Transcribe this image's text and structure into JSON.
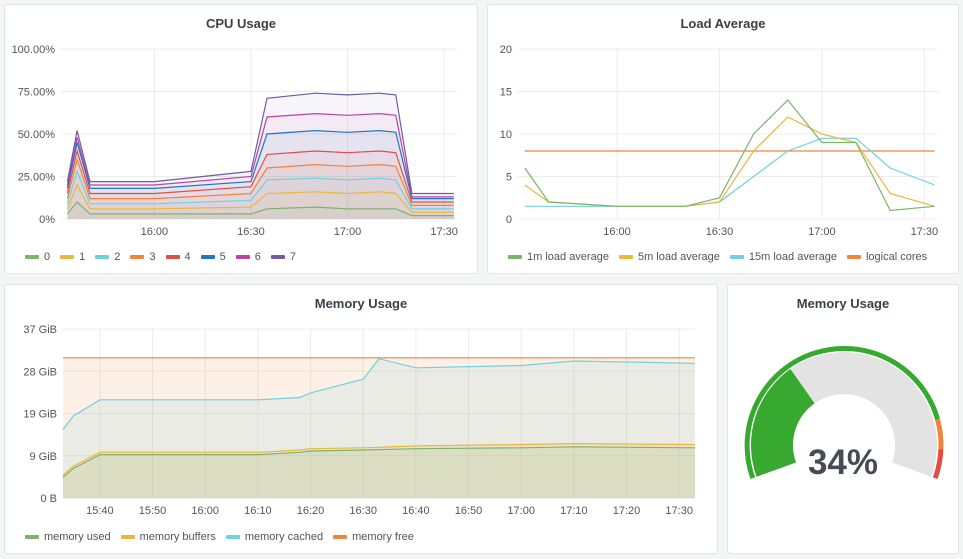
{
  "panels": {
    "cpu": {
      "title": "CPU Usage",
      "yticks": [
        "100.00%",
        "75.00%",
        "50.00%",
        "25.00%",
        "0%"
      ],
      "xticks": [
        "16:00",
        "16:30",
        "17:00",
        "17:30"
      ],
      "legend": [
        {
          "label": "0",
          "color": "#7eb26d"
        },
        {
          "label": "1",
          "color": "#eab839"
        },
        {
          "label": "2",
          "color": "#6ed0e0"
        },
        {
          "label": "3",
          "color": "#ef843c"
        },
        {
          "label": "4",
          "color": "#e24d42"
        },
        {
          "label": "5",
          "color": "#1f78c1"
        },
        {
          "label": "6",
          "color": "#ba43a9"
        },
        {
          "label": "7",
          "color": "#705da0"
        }
      ]
    },
    "load": {
      "title": "Load Average",
      "yticks": [
        "20",
        "15",
        "10",
        "5",
        "0"
      ],
      "xticks": [
        "16:00",
        "16:30",
        "17:00",
        "17:30"
      ],
      "legend": [
        {
          "label": "1m load average",
          "color": "#7eb26d"
        },
        {
          "label": "5m load average",
          "color": "#eab839"
        },
        {
          "label": "15m load average",
          "color": "#6ed0e0"
        },
        {
          "label": "logical cores",
          "color": "#ef843c"
        }
      ]
    },
    "memory": {
      "title": "Memory Usage",
      "yticks": [
        "37 GiB",
        "28 GiB",
        "19 GiB",
        "9 GiB",
        "0 B"
      ],
      "xticks": [
        "15:40",
        "15:50",
        "16:00",
        "16:10",
        "16:20",
        "16:30",
        "16:40",
        "16:50",
        "17:00",
        "17:10",
        "17:20",
        "17:30"
      ],
      "legend": [
        {
          "label": "memory used",
          "color": "#7eb26d"
        },
        {
          "label": "memory buffers",
          "color": "#eab839"
        },
        {
          "label": "memory cached",
          "color": "#6ed0e0"
        },
        {
          "label": "memory free",
          "color": "#ef843c"
        }
      ]
    },
    "gauge": {
      "title": "Memory Usage",
      "value_text": "34%",
      "value": 0.34,
      "colors": {
        "ok": "#37a931",
        "warn": "#ef843c",
        "crit": "#e24d42",
        "track": "#e3e3e3"
      }
    }
  },
  "chart_data": [
    {
      "type": "line",
      "title": "CPU Usage",
      "ylim": [
        0,
        100
      ],
      "x": [
        "15:33",
        "15:36",
        "15:40",
        "16:00",
        "16:30",
        "16:35",
        "16:50",
        "17:00",
        "17:10",
        "17:15",
        "17:20",
        "17:33"
      ],
      "series": [
        {
          "name": "0",
          "values": [
            3,
            10,
            3,
            3,
            3,
            6,
            7,
            6,
            6,
            6,
            2,
            2
          ]
        },
        {
          "name": "1",
          "values": [
            6,
            20,
            6,
            6,
            7,
            15,
            16,
            15,
            16,
            15,
            4,
            4
          ]
        },
        {
          "name": "2",
          "values": [
            9,
            28,
            9,
            9,
            11,
            23,
            24,
            23,
            24,
            23,
            6,
            6
          ]
        },
        {
          "name": "3",
          "values": [
            12,
            35,
            12,
            12,
            15,
            30,
            32,
            31,
            32,
            31,
            8,
            8
          ]
        },
        {
          "name": "4",
          "values": [
            15,
            40,
            15,
            15,
            19,
            38,
            40,
            39,
            40,
            39,
            10,
            10
          ]
        },
        {
          "name": "5",
          "values": [
            18,
            45,
            18,
            18,
            22,
            50,
            52,
            51,
            52,
            51,
            12,
            12
          ]
        },
        {
          "name": "6",
          "values": [
            20,
            48,
            20,
            20,
            25,
            60,
            62,
            61,
            62,
            61,
            13,
            13
          ]
        },
        {
          "name": "7",
          "values": [
            22,
            52,
            22,
            22,
            28,
            71,
            74,
            73,
            74,
            73,
            15,
            15
          ]
        }
      ]
    },
    {
      "type": "line",
      "title": "Load Average",
      "ylim": [
        0,
        20
      ],
      "x": [
        "15:33",
        "15:40",
        "16:00",
        "16:20",
        "16:30",
        "16:40",
        "16:50",
        "17:00",
        "17:10",
        "17:20",
        "17:33"
      ],
      "series": [
        {
          "name": "1m load average",
          "values": [
            6,
            2,
            1.5,
            1.5,
            2.5,
            10,
            14,
            9,
            9,
            1,
            1.5
          ]
        },
        {
          "name": "5m load average",
          "values": [
            4,
            2,
            1.5,
            1.5,
            2,
            8,
            12,
            10,
            9,
            3,
            1.5
          ]
        },
        {
          "name": "15m load average",
          "values": [
            1.5,
            1.5,
            1.5,
            1.5,
            2,
            5,
            8,
            9.5,
            9.5,
            6,
            4
          ]
        },
        {
          "name": "logical cores",
          "values": [
            8,
            8,
            8,
            8,
            8,
            8,
            8,
            8,
            8,
            8,
            8
          ]
        }
      ]
    },
    {
      "type": "area",
      "title": "Memory Usage",
      "ylim": [
        0,
        37
      ],
      "x": [
        "15:33",
        "15:35",
        "15:40",
        "16:00",
        "16:10",
        "16:18",
        "16:20",
        "16:30",
        "16:33",
        "16:40",
        "17:00",
        "17:10",
        "17:33"
      ],
      "series": [
        {
          "name": "memory used",
          "values": [
            4.5,
            6.5,
            9.5,
            9.5,
            9.5,
            10,
            10.3,
            10.5,
            10.6,
            10.8,
            11,
            11.2,
            11
          ]
        },
        {
          "name": "memory buffers",
          "values": [
            5,
            7,
            10,
            10,
            10,
            10.5,
            10.8,
            11,
            11.1,
            11.4,
            11.7,
            11.9,
            11.7
          ]
        },
        {
          "name": "memory cached",
          "values": [
            15,
            18,
            21.5,
            21.5,
            21.5,
            22,
            23,
            26,
            30.5,
            28.5,
            29,
            30,
            29.5
          ]
        },
        {
          "name": "memory free",
          "values": [
            30.7,
            30.7,
            30.7,
            30.7,
            30.7,
            30.7,
            30.7,
            30.7,
            30.7,
            30.7,
            30.7,
            30.7,
            30.7
          ]
        }
      ]
    }
  ]
}
